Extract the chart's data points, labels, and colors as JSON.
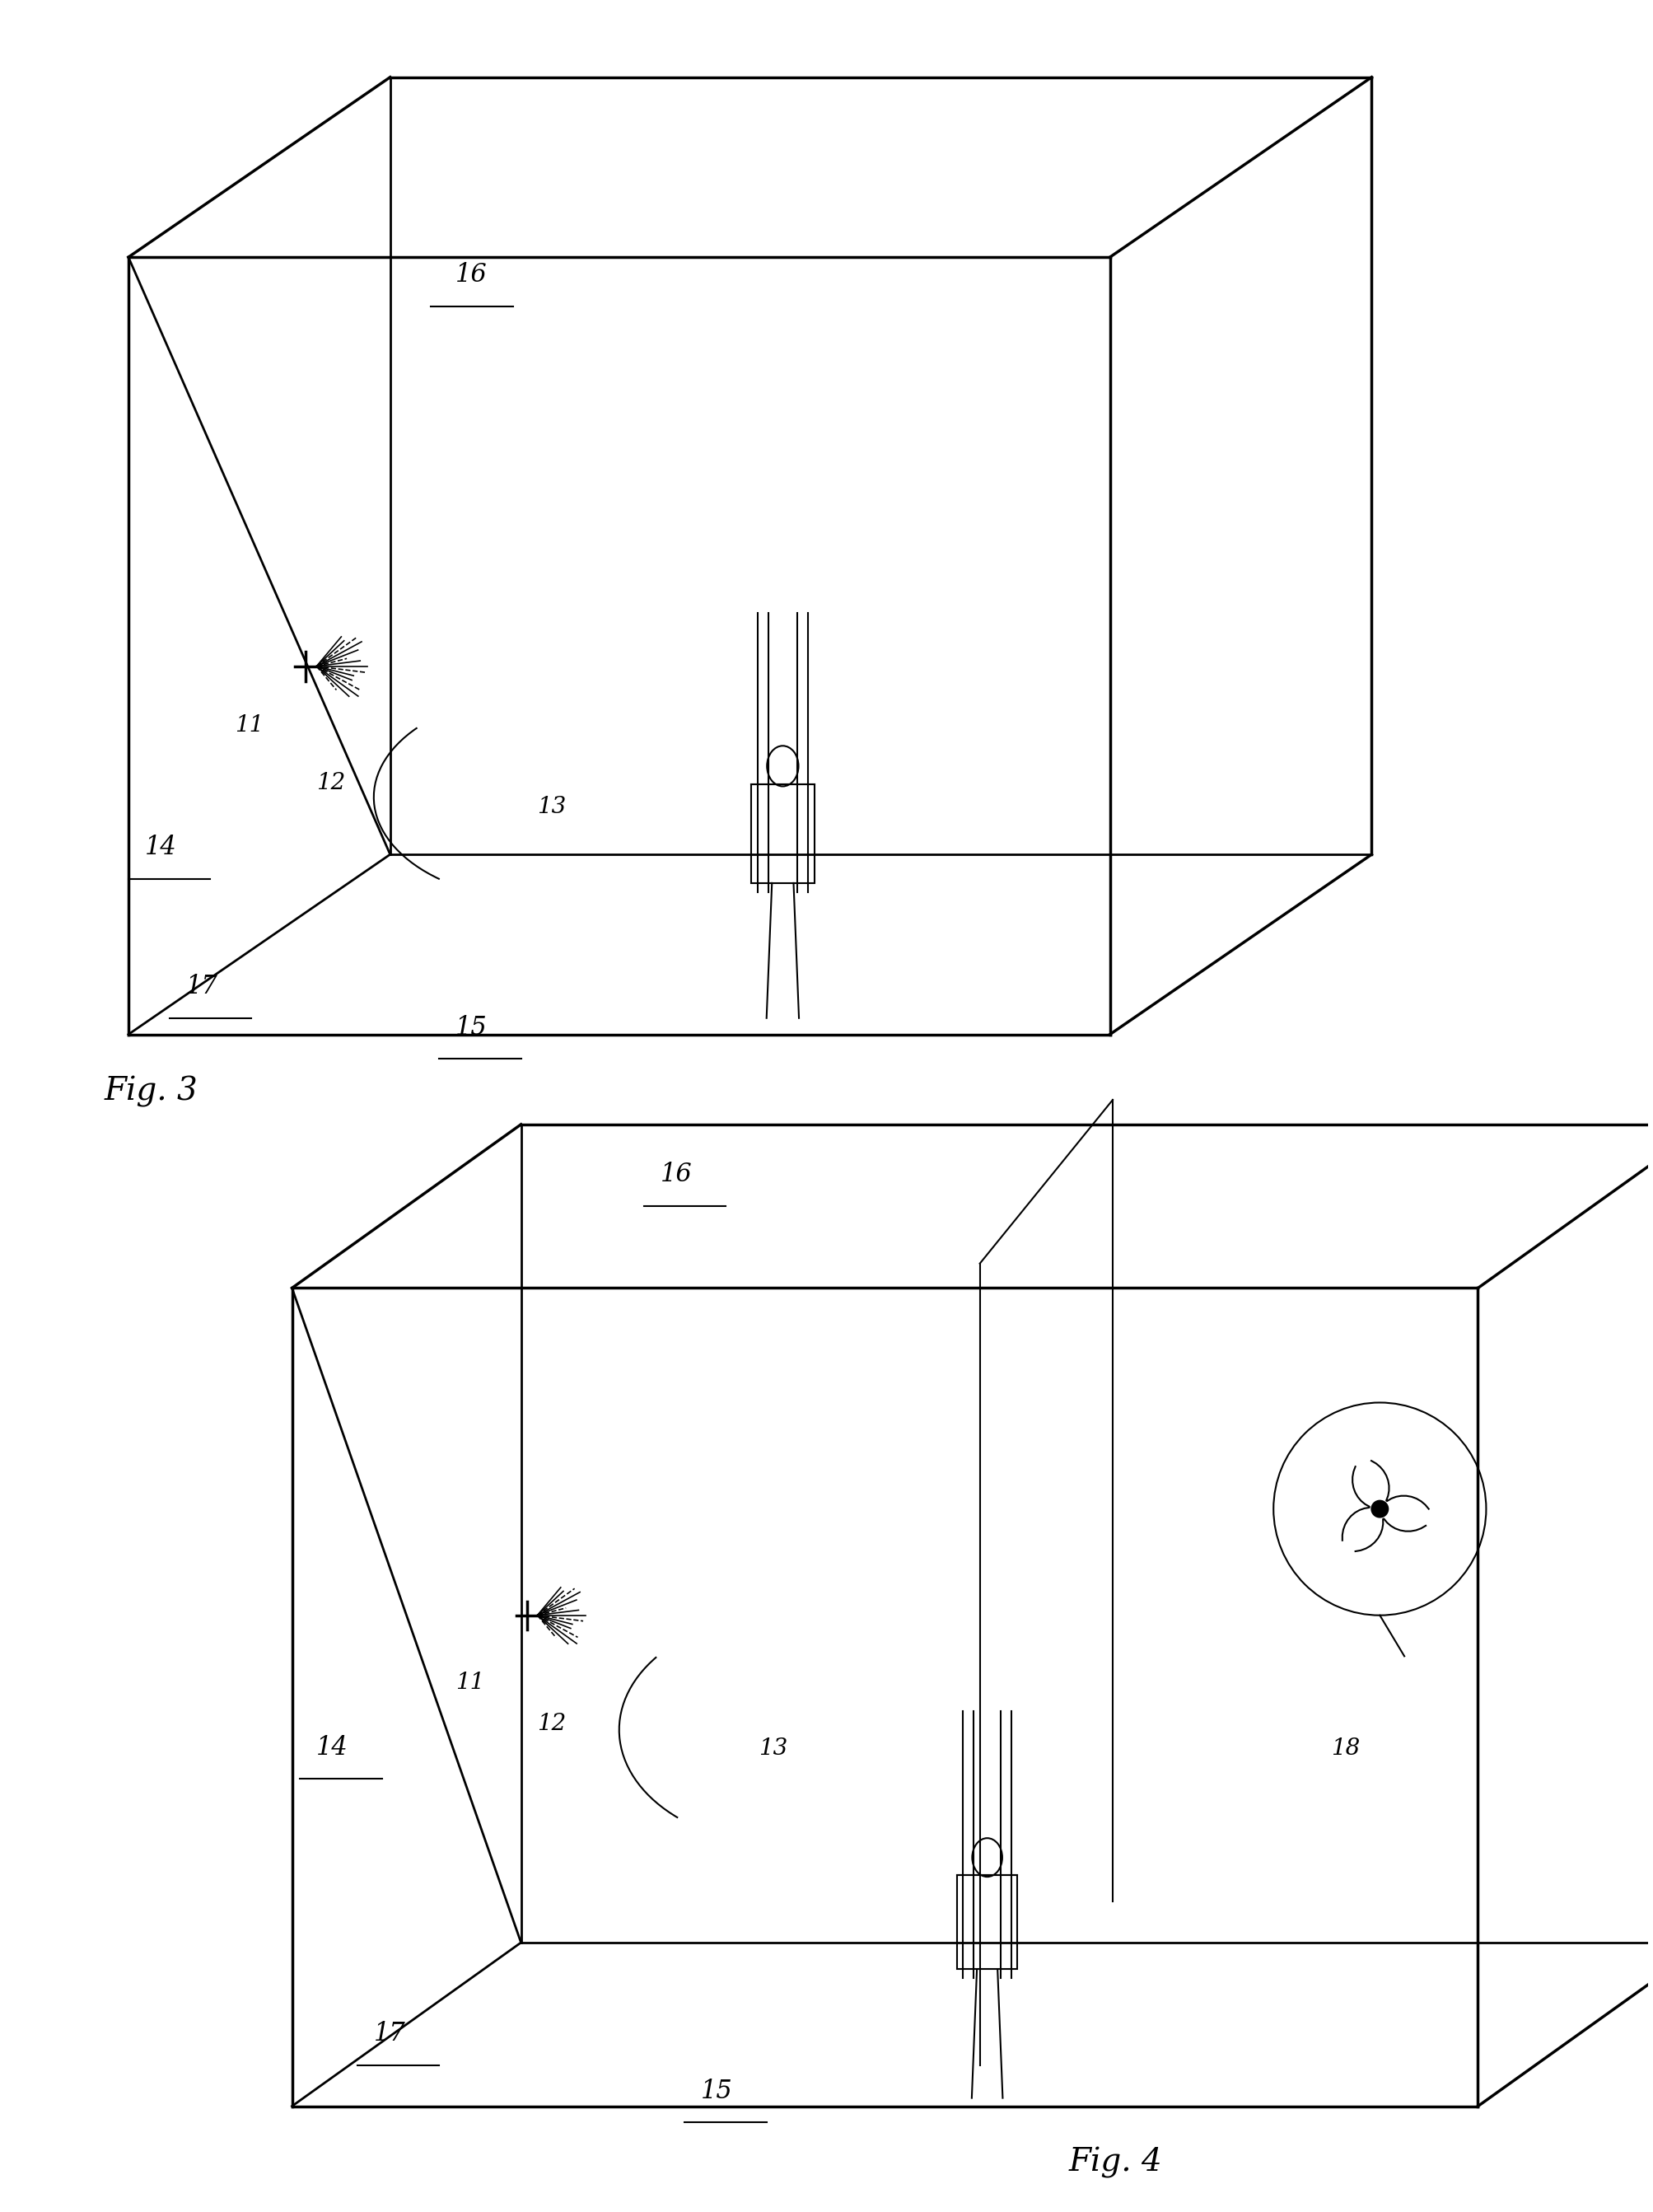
{
  "bg_color": "#ffffff",
  "line_color": "#000000",
  "fig3_label": "Fig. 3",
  "fig4_label": "Fig. 4",
  "label_11": "11",
  "label_12": "12",
  "label_13": "13",
  "label_14": "14",
  "label_15": "15",
  "label_16": "16",
  "label_17": "17",
  "label_18": "18"
}
